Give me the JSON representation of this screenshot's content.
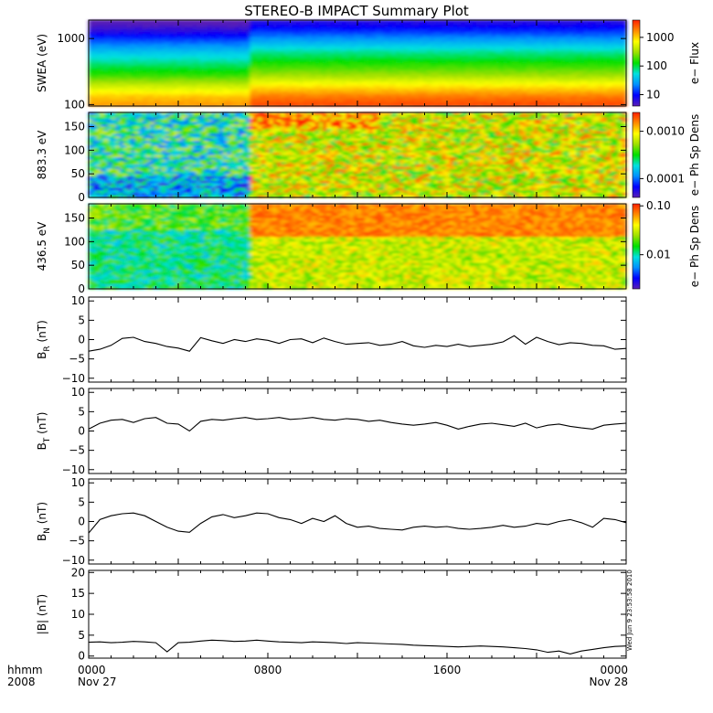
{
  "title": "STEREO-B IMPACT Summary Plot",
  "stamp": "Wed Jun  9 23:53:58 2010",
  "time_axis": {
    "row1_label": "hhmm",
    "row2_label": "2008",
    "ticks": [
      {
        "hours": 0,
        "label": "0000",
        "date": "Nov 27"
      },
      {
        "hours": 8,
        "label": "0800",
        "date": ""
      },
      {
        "hours": 16,
        "label": "1600",
        "date": ""
      },
      {
        "hours": 24,
        "label": "0000",
        "date": "Nov 28"
      }
    ]
  },
  "colors": {
    "colormap": [
      "#5a1fb5",
      "#0000ff",
      "#0090ff",
      "#00e0e0",
      "#00e000",
      "#9ee000",
      "#ffff00",
      "#ff8c00",
      "#ff2000"
    ],
    "trace": "#000000"
  },
  "chart_data": [
    {
      "type": "heatmap",
      "ylabel": "SWEA (eV)",
      "y_scale": "log",
      "ylim": [
        95,
        1900
      ],
      "y_ticks": [
        {
          "value": 100,
          "label": "100"
        },
        {
          "value": 1000,
          "label": "1000"
        }
      ],
      "colorbar": {
        "label": "e− Flux",
        "scale": "log",
        "range": [
          4,
          4000
        ],
        "ticks": [
          {
            "value": 10,
            "label": "10"
          },
          {
            "value": 100,
            "label": "100"
          },
          {
            "value": 1000,
            "label": "1000"
          }
        ]
      },
      "energy_profile": [
        {
          "energy": 95,
          "flux": 2500
        },
        {
          "energy": 130,
          "flux": 1700
        },
        {
          "energy": 190,
          "flux": 700
        },
        {
          "energy": 280,
          "flux": 250
        },
        {
          "energy": 420,
          "flux": 120
        },
        {
          "energy": 620,
          "flux": 60
        },
        {
          "energy": 900,
          "flux": 25
        },
        {
          "energy": 1300,
          "flux": 10
        },
        {
          "energy": 1900,
          "flux": 5
        }
      ],
      "level_change": {
        "time_hours": 7.2,
        "factor_before": 0.65,
        "factor_after": 1.2
      }
    },
    {
      "type": "heatmap",
      "ylabel": "883.3 eV",
      "ylim": [
        0,
        180
      ],
      "y_ticks": [
        {
          "value": 0,
          "label": "0"
        },
        {
          "value": 50,
          "label": "50"
        },
        {
          "value": 100,
          "label": "100"
        },
        {
          "value": 150,
          "label": "150"
        }
      ],
      "colorbar": {
        "label": "e− Ph Sp Dens",
        "scale": "log",
        "range": [
          4e-05,
          0.0025
        ],
        "ticks": [
          {
            "value": 0.0001,
            "label": "0.0001"
          },
          {
            "value": 0.001,
            "label": "0.0010"
          }
        ]
      },
      "base_before_hours": 7.2,
      "level_before": 0.00025,
      "level_after": 0.0007
    },
    {
      "type": "heatmap",
      "ylabel": "436.5 eV",
      "ylim": [
        0,
        180
      ],
      "y_ticks": [
        {
          "value": 0,
          "label": "0"
        },
        {
          "value": 50,
          "label": "50"
        },
        {
          "value": 100,
          "label": "100"
        },
        {
          "value": 150,
          "label": "150"
        }
      ],
      "colorbar": {
        "label": "e− Ph Sp Dens",
        "scale": "log",
        "range": [
          0.002,
          0.11
        ],
        "ticks": [
          {
            "value": 0.01,
            "label": "0.01"
          },
          {
            "value": 0.1,
            "label": "0.10"
          }
        ]
      },
      "base_before_hours": 7.2,
      "level_before": 0.012,
      "level_after": 0.03,
      "high_pa_level": 0.07
    },
    {
      "type": "line",
      "ylabel": "B",
      "ylabel_sub": "R",
      "ylabel_unit": " (nT)",
      "ylim": [
        -11,
        11
      ],
      "y_ticks": [
        {
          "value": -10,
          "label": "−10"
        },
        {
          "value": -5,
          "label": "−5"
        },
        {
          "value": 0,
          "label": "0"
        },
        {
          "value": 5,
          "label": "5"
        },
        {
          "value": 10,
          "label": "10"
        }
      ],
      "x": [
        0,
        0.5,
        1,
        1.5,
        2,
        2.5,
        3,
        3.5,
        4,
        4.5,
        5,
        5.5,
        6,
        6.5,
        7,
        7.5,
        8,
        8.5,
        9,
        9.5,
        10,
        10.5,
        11,
        11.5,
        12,
        12.5,
        13,
        13.5,
        14,
        14.5,
        15,
        15.5,
        16,
        16.5,
        17,
        17.5,
        18,
        18.5,
        19,
        19.5,
        20,
        20.5,
        21,
        21.5,
        22,
        22.5,
        23,
        23.5,
        24
      ],
      "y": [
        -3,
        -2.5,
        -1.5,
        0.3,
        0.6,
        -0.5,
        -1,
        -1.8,
        -2.2,
        -3,
        0.5,
        -0.3,
        -1,
        0,
        -0.5,
        0.2,
        -0.2,
        -1,
        0,
        0.2,
        -0.8,
        0.4,
        -0.5,
        -1.2,
        -1,
        -0.8,
        -1.5,
        -1.2,
        -0.5,
        -1.6,
        -2,
        -1.5,
        -1.8,
        -1.2,
        -1.8,
        -1.5,
        -1.2,
        -0.6,
        1,
        -1.2,
        0.6,
        -0.5,
        -1.3,
        -0.8,
        -1,
        -1.5,
        -1.6,
        -2.5,
        -2.3
      ]
    },
    {
      "type": "line",
      "ylabel": "B",
      "ylabel_sub": "T",
      "ylabel_unit": " (nT)",
      "ylim": [
        -11,
        11
      ],
      "y_ticks": [
        {
          "value": -10,
          "label": "−10"
        },
        {
          "value": -5,
          "label": "−5"
        },
        {
          "value": 0,
          "label": "0"
        },
        {
          "value": 5,
          "label": "5"
        },
        {
          "value": 10,
          "label": "10"
        }
      ],
      "x": [
        0,
        0.5,
        1,
        1.5,
        2,
        2.5,
        3,
        3.5,
        4,
        4.5,
        5,
        5.5,
        6,
        6.5,
        7,
        7.5,
        8,
        8.5,
        9,
        9.5,
        10,
        10.5,
        11,
        11.5,
        12,
        12.5,
        13,
        13.5,
        14,
        14.5,
        15,
        15.5,
        16,
        16.5,
        17,
        17.5,
        18,
        18.5,
        19,
        19.5,
        20,
        20.5,
        21,
        21.5,
        22,
        22.5,
        23,
        23.5,
        24
      ],
      "y": [
        0.5,
        2,
        2.8,
        3,
        2.2,
        3.2,
        3.5,
        2,
        1.8,
        0,
        2.5,
        3,
        2.8,
        3.2,
        3.5,
        3,
        3.2,
        3.5,
        3,
        3.2,
        3.5,
        3,
        2.8,
        3.2,
        3,
        2.5,
        2.8,
        2.2,
        1.8,
        1.5,
        1.8,
        2.2,
        1.5,
        0.5,
        1.2,
        1.8,
        2,
        1.6,
        1.2,
        2,
        0.8,
        1.5,
        1.8,
        1.2,
        0.8,
        0.5,
        1.5,
        1.8,
        2
      ]
    },
    {
      "type": "line",
      "ylabel": "B",
      "ylabel_sub": "N",
      "ylabel_unit": " (nT)",
      "ylim": [
        -11,
        11
      ],
      "y_ticks": [
        {
          "value": -10,
          "label": "−10"
        },
        {
          "value": -5,
          "label": "−5"
        },
        {
          "value": 0,
          "label": "0"
        },
        {
          "value": 5,
          "label": "5"
        },
        {
          "value": 10,
          "label": "10"
        }
      ],
      "x": [
        0,
        0.5,
        1,
        1.5,
        2,
        2.5,
        3,
        3.5,
        4,
        4.5,
        5,
        5.5,
        6,
        6.5,
        7,
        7.5,
        8,
        8.5,
        9,
        9.5,
        10,
        10.5,
        11,
        11.5,
        12,
        12.5,
        13,
        13.5,
        14,
        14.5,
        15,
        15.5,
        16,
        16.5,
        17,
        17.5,
        18,
        18.5,
        19,
        19.5,
        20,
        20.5,
        21,
        21.5,
        22,
        22.5,
        23,
        23.5,
        24
      ],
      "y": [
        -3,
        0.5,
        1.5,
        2,
        2.2,
        1.5,
        0,
        -1.5,
        -2.5,
        -2.8,
        -0.5,
        1.2,
        1.8,
        1,
        1.5,
        2.2,
        2,
        1,
        0.5,
        -0.5,
        0.8,
        0,
        1.5,
        -0.5,
        -1.5,
        -1.2,
        -1.8,
        -2,
        -2.2,
        -1.5,
        -1.2,
        -1.5,
        -1.3,
        -1.8,
        -2,
        -1.8,
        -1.5,
        -1,
        -1.5,
        -1.2,
        -0.5,
        -0.8,
        0,
        0.5,
        -0.3,
        -1.5,
        0.8,
        0.5,
        -0.3
      ]
    },
    {
      "type": "line",
      "ylabel": "|B| (nT)",
      "ylim": [
        -0.5,
        20.5
      ],
      "y_ticks": [
        {
          "value": 0,
          "label": "0"
        },
        {
          "value": 5,
          "label": "5"
        },
        {
          "value": 10,
          "label": "10"
        },
        {
          "value": 15,
          "label": "15"
        },
        {
          "value": 20,
          "label": "20"
        }
      ],
      "x": [
        0,
        0.5,
        1,
        1.5,
        2,
        2.5,
        3,
        3.5,
        4,
        4.5,
        5,
        5.5,
        6,
        6.5,
        7,
        7.5,
        8,
        8.5,
        9,
        9.5,
        10,
        10.5,
        11,
        11.5,
        12,
        12.5,
        13,
        13.5,
        14,
        14.5,
        15,
        15.5,
        16,
        16.5,
        17,
        17.5,
        18,
        18.5,
        19,
        19.5,
        20,
        20.5,
        21,
        21.5,
        22,
        22.5,
        23,
        23.5,
        24
      ],
      "y": [
        3.3,
        3.4,
        3.2,
        3.3,
        3.5,
        3.4,
        3.2,
        1,
        3.2,
        3.3,
        3.6,
        3.8,
        3.7,
        3.5,
        3.6,
        3.8,
        3.6,
        3.4,
        3.3,
        3.2,
        3.4,
        3.3,
        3.2,
        3,
        3.2,
        3.1,
        3,
        2.9,
        2.8,
        2.6,
        2.5,
        2.4,
        2.3,
        2.2,
        2.3,
        2.4,
        2.3,
        2.2,
        2,
        1.8,
        1.5,
        0.9,
        1.2,
        0.5,
        1.2,
        1.6,
        2,
        2.3,
        2.4
      ]
    }
  ]
}
